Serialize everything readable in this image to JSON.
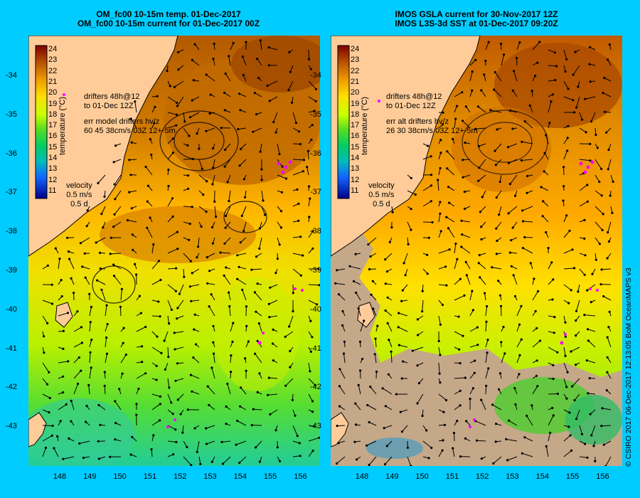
{
  "left_panel": {
    "title_line1": "OM_fc00 10-15m temp. 01-Dec-2017",
    "title_line2": "OM_fc00 10-15m current for 01-Dec-2017 00Z",
    "drifters_line1": "drifters 48h@12",
    "drifters_line2": "to 01-Dec 12Z",
    "err_line1": "err model drifters hv/z",
    "err_line2": "60 45 38cm/s 03Z 12+-5m",
    "velocity_label": "velocity",
    "velocity_scale": "0.5 m/s",
    "velocity_time": "0.5 d"
  },
  "right_panel": {
    "title_line1": "IMOS GSLA current for 30-Nov-2017 12Z",
    "title_line2": "IMOS L3S-3d SST at 01-Dec-2017 09:20Z",
    "drifters_line1": "drifters 48h@12",
    "drifters_line2": "to 01-Dec 12Z",
    "err_line1": "err alt drifters hv/z",
    "err_line2": "26 30 38cm/s 03Z 12+-5m",
    "velocity_label": "velocity",
    "velocity_scale": "0.5 m/s",
    "velocity_time": "0.5 d"
  },
  "colorbar": {
    "label": "temperature (°C)",
    "ticks": [
      "24",
      "23",
      "22",
      "21",
      "20",
      "19",
      "18",
      "17",
      "16",
      "15",
      "14",
      "13",
      "12",
      "11"
    ]
  },
  "lat_ticks": [
    "-34",
    "-35",
    "-36",
    "-37",
    "-38",
    "-39",
    "-40",
    "-41",
    "-42",
    "-43"
  ],
  "lon_ticks": [
    "148",
    "149",
    "150",
    "151",
    "152",
    "153",
    "154",
    "155",
    "156"
  ],
  "credit": "© CSIRO 2017   06-Dec-2017 12:13:05 BoM OceanMAPS v3",
  "colors": {
    "background": "#00ccff",
    "land": "#ffcc99",
    "warm": "#b35a00",
    "mid": "#ffb400",
    "cool": "#99ee00",
    "cold": "#22cc88",
    "missing": "#c4a888",
    "drifter": "#ff00ff"
  }
}
